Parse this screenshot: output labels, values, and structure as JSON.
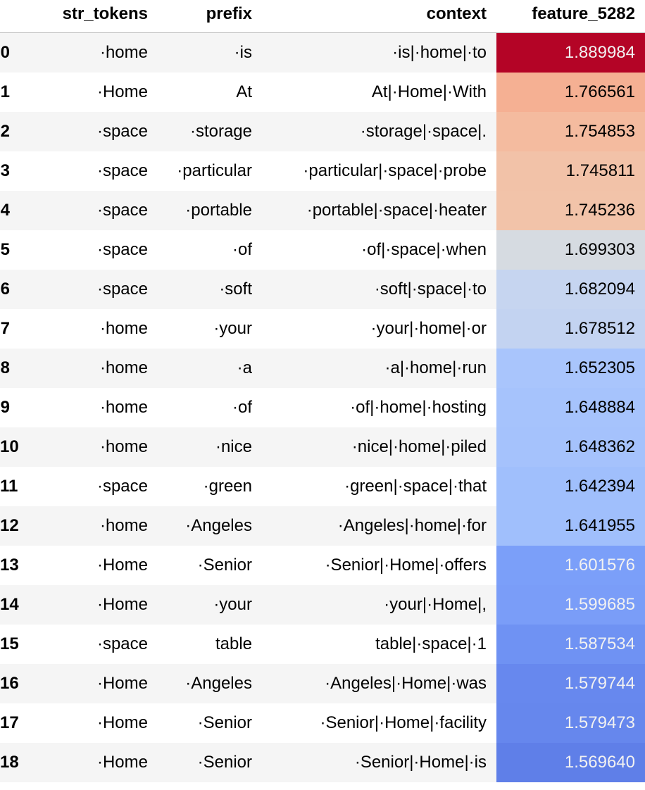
{
  "table": {
    "columns": [
      "",
      "str_tokens",
      "prefix",
      "context",
      "feature_5282"
    ],
    "rows": [
      {
        "index": "0",
        "str_tokens": "·home",
        "prefix": "·is",
        "context": "·is|·home|·to",
        "feature": "1.889984",
        "bg": "#b40426",
        "fg": "#f1f1f1"
      },
      {
        "index": "1",
        "str_tokens": "·Home",
        "prefix": "At",
        "context": "At|·Home|·With",
        "feature": "1.766561",
        "bg": "#f5b093",
        "fg": "#000000"
      },
      {
        "index": "2",
        "str_tokens": "·space",
        "prefix": "·storage",
        "context": "·storage|·space|.",
        "feature": "1.754853",
        "bg": "#f4bb9f",
        "fg": "#000000"
      },
      {
        "index": "3",
        "str_tokens": "·space",
        "prefix": "·particular",
        "context": "·particular|·space|·probe",
        "feature": "1.745811",
        "bg": "#f2c2a8",
        "fg": "#000000"
      },
      {
        "index": "4",
        "str_tokens": "·space",
        "prefix": "·portable",
        "context": "·portable|·space|·heater",
        "feature": "1.745236",
        "bg": "#f2c3a9",
        "fg": "#000000"
      },
      {
        "index": "5",
        "str_tokens": "·space",
        "prefix": "·of",
        "context": "·of|·space|·when",
        "feature": "1.699303",
        "bg": "#d6dbe1",
        "fg": "#000000"
      },
      {
        "index": "6",
        "str_tokens": "·space",
        "prefix": "·soft",
        "context": "·soft|·space|·to",
        "feature": "1.682094",
        "bg": "#c6d5f0",
        "fg": "#000000"
      },
      {
        "index": "7",
        "str_tokens": "·home",
        "prefix": "·your",
        "context": "·your|·home|·or",
        "feature": "1.678512",
        "bg": "#c3d3f1",
        "fg": "#000000"
      },
      {
        "index": "8",
        "str_tokens": "·home",
        "prefix": "·a",
        "context": "·a|·home|·run",
        "feature": "1.652305",
        "bg": "#a9c5fc",
        "fg": "#000000"
      },
      {
        "index": "9",
        "str_tokens": "·home",
        "prefix": "·of",
        "context": "·of|·home|·hosting",
        "feature": "1.648884",
        "bg": "#a6c3fc",
        "fg": "#000000"
      },
      {
        "index": "10",
        "str_tokens": "·home",
        "prefix": "·nice",
        "context": "·nice|·home|·piled",
        "feature": "1.648362",
        "bg": "#a5c2fc",
        "fg": "#000000"
      },
      {
        "index": "11",
        "str_tokens": "·space",
        "prefix": "·green",
        "context": "·green|·space|·that",
        "feature": "1.642394",
        "bg": "#a0bffc",
        "fg": "#000000"
      },
      {
        "index": "12",
        "str_tokens": "·home",
        "prefix": "·Angeles",
        "context": "·Angeles|·home|·for",
        "feature": "1.641955",
        "bg": "#a0bffc",
        "fg": "#000000"
      },
      {
        "index": "13",
        "str_tokens": "·Home",
        "prefix": "·Senior",
        "context": "·Senior|·Home|·offers",
        "feature": "1.601576",
        "bg": "#7b9ff9",
        "fg": "#f1f1f1"
      },
      {
        "index": "14",
        "str_tokens": "·Home",
        "prefix": "·your",
        "context": "·your|·Home|,",
        "feature": "1.599685",
        "bg": "#7a9df8",
        "fg": "#f1f1f1"
      },
      {
        "index": "15",
        "str_tokens": "·space",
        "prefix": "table",
        "context": "table|·space|·1",
        "feature": "1.587534",
        "bg": "#6f92f3",
        "fg": "#f1f1f1"
      },
      {
        "index": "16",
        "str_tokens": "·Home",
        "prefix": "·Angeles",
        "context": "·Angeles|·Home|·was",
        "feature": "1.579744",
        "bg": "#6788ee",
        "fg": "#f1f1f1"
      },
      {
        "index": "17",
        "str_tokens": "·Home",
        "prefix": "·Senior",
        "context": "·Senior|·Home|·facility",
        "feature": "1.579473",
        "bg": "#6687ed",
        "fg": "#f1f1f1"
      },
      {
        "index": "18",
        "str_tokens": "·Home",
        "prefix": "·Senior",
        "context": "·Senior|·Home|·is",
        "feature": "1.569640",
        "bg": "#5f7fe8",
        "fg": "#f1f1f1"
      }
    ]
  }
}
